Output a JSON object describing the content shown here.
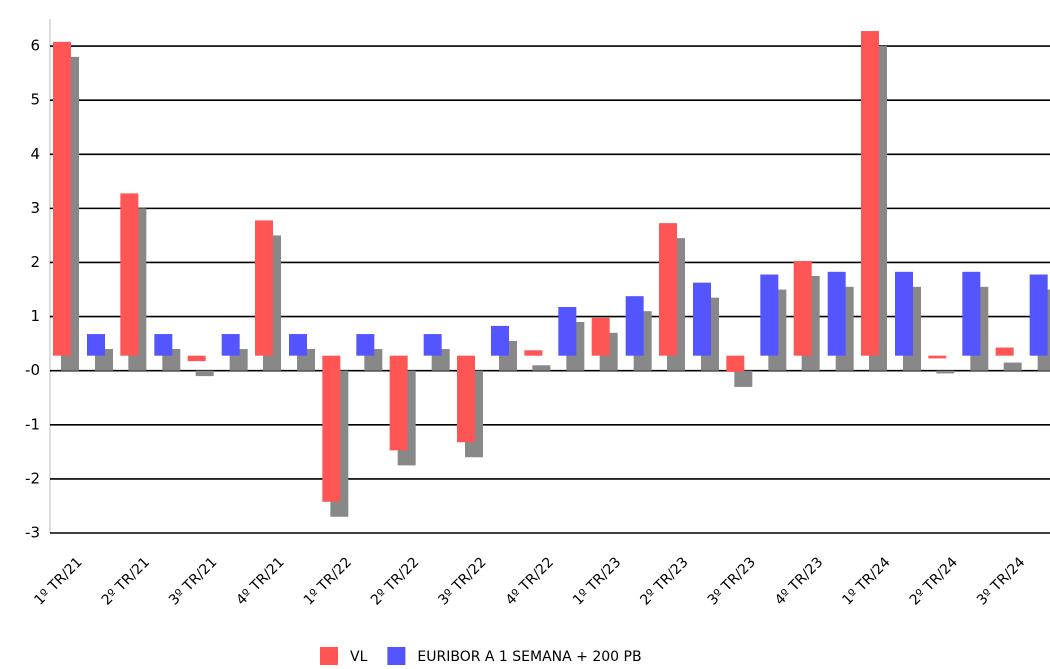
{
  "chart_data": {
    "type": "bar",
    "categories": [
      "1º TR/21",
      "2º TR/21",
      "3º TR/21",
      "4º TR/21",
      "1º TR/22",
      "2º TR/22",
      "3º TR/22",
      "4º TR/22",
      "1º TR/23",
      "2º TR/23",
      "3º TR/23",
      "4º TR/23",
      "1º TR/24",
      "2º TR/24",
      "3º TR/24"
    ],
    "series": [
      {
        "name": "VL",
        "color": "#ff5555",
        "values": [
          5.8,
          3.0,
          -0.1,
          2.5,
          -2.7,
          -1.75,
          -1.6,
          0.1,
          0.7,
          2.45,
          -0.3,
          1.75,
          6.0,
          -0.05,
          0.15
        ]
      },
      {
        "name": "EURIBOR A 1 SEMANA + 200 PB",
        "color": "#5555ff",
        "values": [
          0.4,
          0.4,
          0.4,
          0.4,
          0.4,
          0.4,
          0.55,
          0.9,
          1.1,
          1.35,
          1.5,
          1.55,
          1.55,
          1.55,
          1.5
        ]
      }
    ],
    "ylim": [
      -3,
      6.5
    ],
    "yticks": [
      -3,
      -2,
      -1,
      {
        "value": 0,
        "label": "-0"
      },
      1,
      2,
      3,
      4,
      5,
      6
    ],
    "grid": true
  }
}
